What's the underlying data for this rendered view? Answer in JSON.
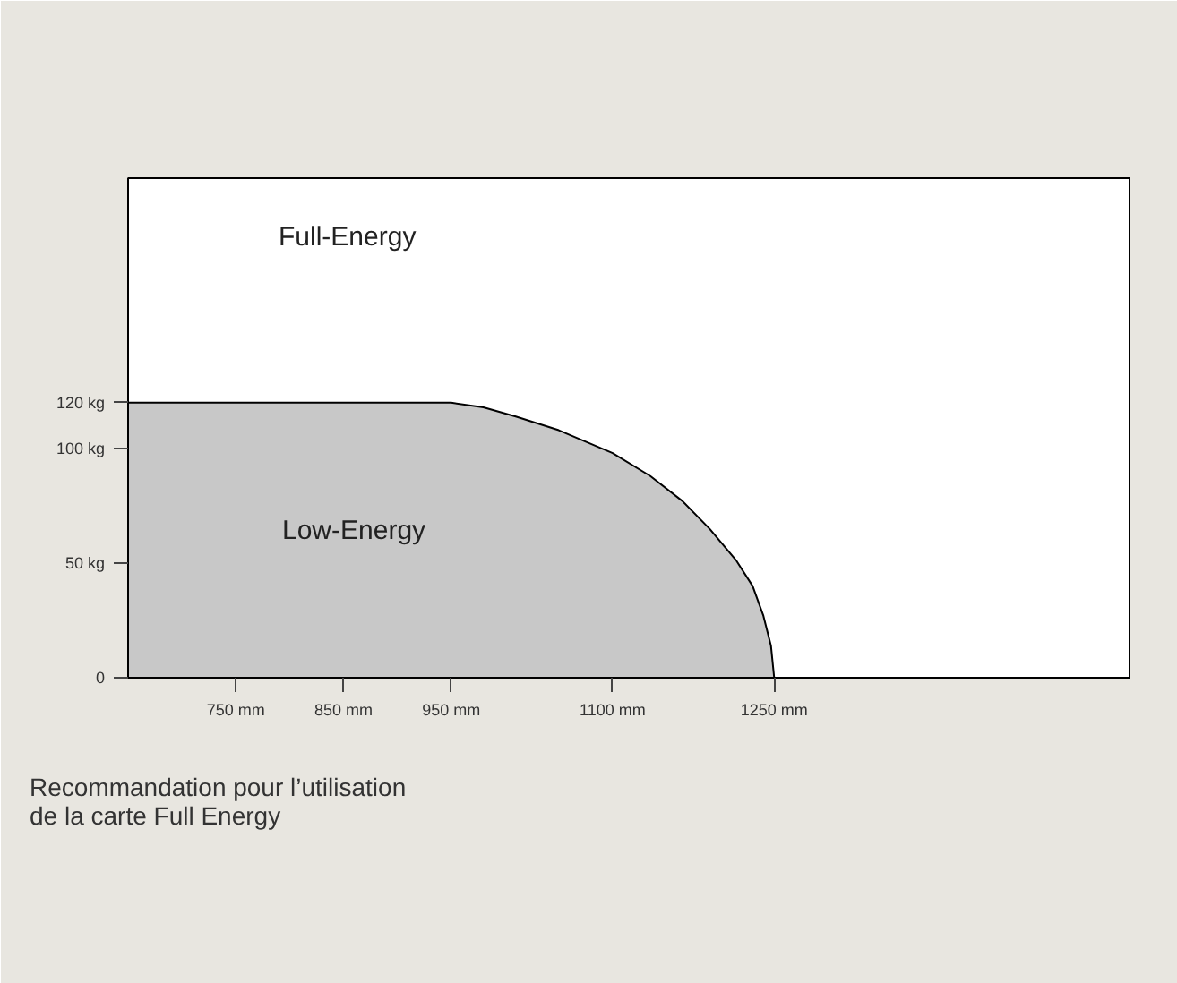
{
  "chart_data": {
    "type": "area",
    "x": [
      650,
      950,
      980,
      1010,
      1050,
      1100,
      1135,
      1165,
      1190,
      1215,
      1230,
      1240,
      1247,
      1250
    ],
    "series": [
      {
        "color": "#c8c8c8",
        "values": [
          120,
          120,
          118,
          114,
          108,
          98,
          88,
          77,
          65,
          51,
          40,
          27,
          14,
          0
        ]
      }
    ],
    "xlim": [
      650,
      1580
    ],
    "ylim": [
      0,
      218
    ],
    "xticks": [
      {
        "value": 750,
        "label": "750 mm"
      },
      {
        "value": 850,
        "label": "850 mm"
      },
      {
        "value": 950,
        "label": "950 mm"
      },
      {
        "value": 1100,
        "label": "1100 mm"
      },
      {
        "value": 1250,
        "label": "1250 mm"
      }
    ],
    "yticks": [
      0,
      {
        "value": 50,
        "label": "50 kg"
      },
      {
        "value": 100,
        "label": "100 kg"
      },
      {
        "value": 120,
        "label": "120 kg"
      }
    ],
    "grid": false,
    "annotations": [
      "Full-Energy",
      "Low-Energy",
      "Recommandation pour l’utilisation\nde la carte Full Energy"
    ]
  }
}
